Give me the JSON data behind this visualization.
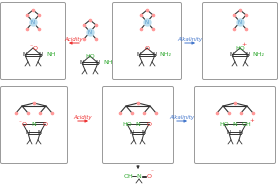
{
  "bg": "#ffffff",
  "box_ec": "#999999",
  "bond_c": "#333333",
  "n_c": "#5599cc",
  "o_c": "#ee3333",
  "green_c": "#33aa33",
  "pink_c": "#ff9999",
  "red_lbl": "#ee3333",
  "blue_lbl": "#4477cc",
  "acidity": "Acidity",
  "alkalinity": "Alkalinity"
}
